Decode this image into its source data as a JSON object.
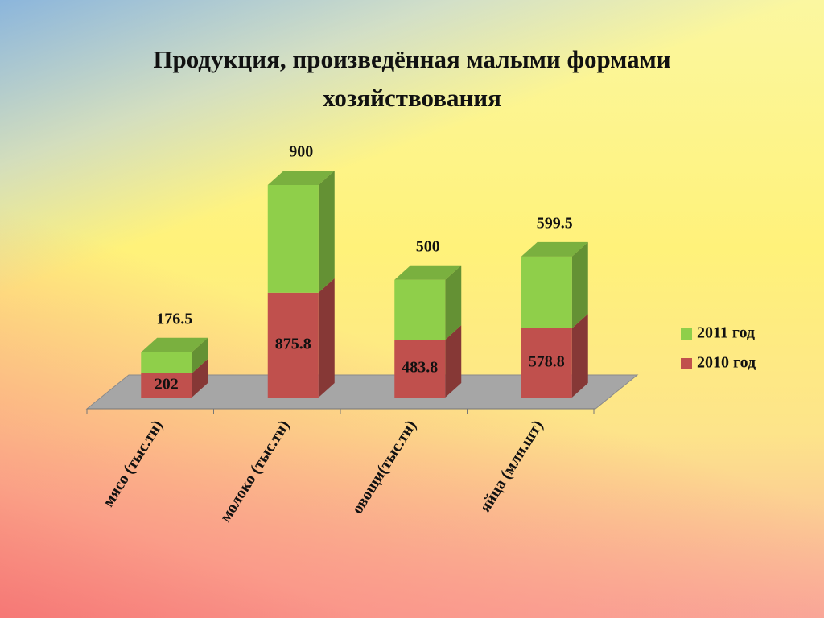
{
  "chart_data": {
    "type": "bar3d_stacked",
    "title": "Продукция, произведённая малыми формами хозяйствования",
    "categories": [
      "мясо (тыс.тн)",
      "молоко (тыс.тн)",
      "овощи(тыс.тн)",
      "яйца (млн.шт)"
    ],
    "series": [
      {
        "name": "2010 год",
        "color": "#c0504d",
        "values": [
          202,
          875.8,
          483.8,
          578.8
        ]
      },
      {
        "name": "2011 год",
        "color": "#8fcf4a",
        "values": [
          176.5,
          900,
          500,
          599.5
        ]
      }
    ],
    "legend": "right"
  }
}
